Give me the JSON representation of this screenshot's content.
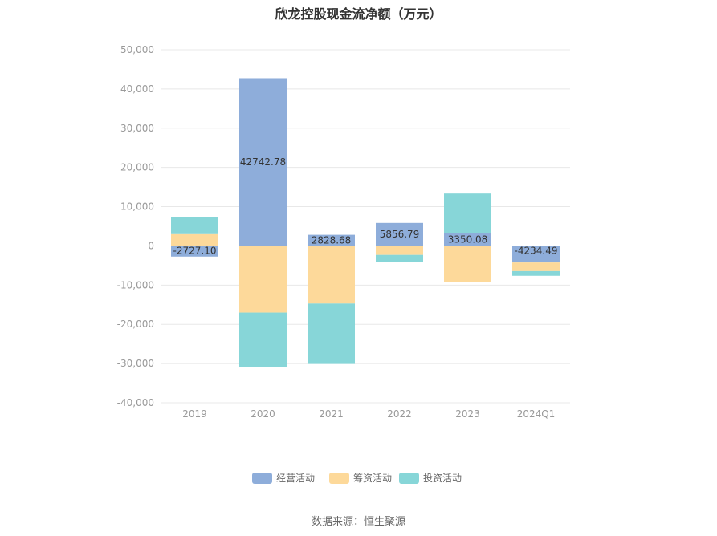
{
  "chart_data": {
    "type": "bar",
    "stacked": true,
    "title": "欣龙控股现金流净额（万元）",
    "categories": [
      "2019",
      "2020",
      "2021",
      "2022",
      "2023",
      "2024Q1"
    ],
    "series": [
      {
        "name": "经营活动",
        "color": "#8eadda",
        "values": [
          -2727.1,
          42742.78,
          2828.68,
          5856.79,
          3350.08,
          -4234.49
        ]
      },
      {
        "name": "筹资活动",
        "color": "#fdd99a",
        "values": [
          3000,
          -17000,
          -14700,
          -2300,
          -9300,
          -2200
        ]
      },
      {
        "name": "投资活动",
        "color": "#87d6d8",
        "values": [
          4300,
          -13900,
          -15400,
          -1900,
          10000,
          -1200
        ]
      }
    ],
    "data_labels": [
      "-2727.10",
      "42742.78",
      "2828.68",
      "5856.79",
      "3350.08",
      "-4234.49"
    ],
    "ylim": [
      -40000,
      50000
    ],
    "yticks": [
      50000,
      40000,
      30000,
      20000,
      10000,
      0,
      -10000,
      -20000,
      -30000,
      -40000
    ],
    "ytick_labels": [
      "50,000",
      "40,000",
      "30,000",
      "20,000",
      "10,000",
      "0",
      "-10,000",
      "-20,000",
      "-30,000",
      "-40,000"
    ],
    "grid": true,
    "legend_position": "bottom-center"
  },
  "source": "数据来源：恒生聚源"
}
